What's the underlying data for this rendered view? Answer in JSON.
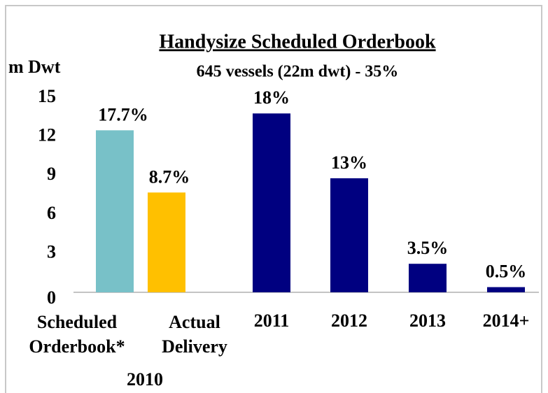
{
  "chart_data": {
    "type": "bar",
    "title": "Handysize Scheduled Orderbook",
    "subtitle": "645 vessels (22m dwt) - 35%",
    "y_label": "m Dwt",
    "categories": [
      "Scheduled Orderbook*",
      "Actual Delivery",
      "2011",
      "2012",
      "2013",
      "2014+"
    ],
    "group_label": "2010",
    "values": [
      12.5,
      7.7,
      13.8,
      8.8,
      2.2,
      0.4
    ],
    "bar_labels": [
      "17.7%",
      "8.7%",
      "18%",
      "13%",
      "3.5%",
      "0.5%"
    ],
    "colors": [
      "#78c1c8",
      "#ffc000",
      "#000080",
      "#000080",
      "#000080",
      "#000080"
    ],
    "ylim": [
      0,
      15
    ],
    "yticks": [
      0,
      3,
      6,
      9,
      12,
      15
    ],
    "grid": false
  }
}
